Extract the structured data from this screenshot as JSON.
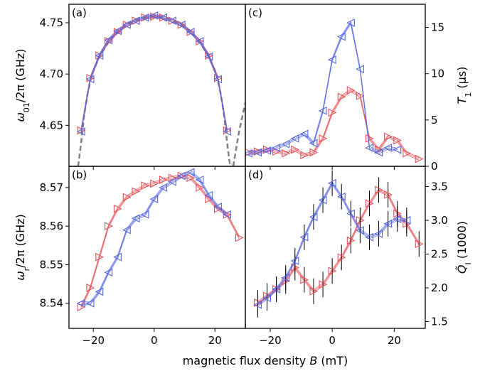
{
  "chart_data": [
    {
      "panel": "a",
      "type": "scatter",
      "label": "(a)",
      "ylabel_parts": {
        "pre": "ω",
        "sub": "01",
        "post": "/2π (GHz)"
      },
      "xlim": [
        -28,
        30
      ],
      "ylim": [
        4.61,
        4.768
      ],
      "yticks": [
        4.65,
        4.7,
        4.75
      ],
      "ytick_labels": [
        "4.65",
        "4.70",
        "4.75"
      ],
      "series": [
        {
          "color": "#e8525a",
          "marker": "triangle-right",
          "x": [
            -24,
            -21,
            -18,
            -15,
            -12,
            -9,
            -6,
            -3,
            0,
            3,
            6,
            9,
            12,
            15,
            18,
            21,
            24
          ],
          "y": [
            4.645,
            4.696,
            4.718,
            4.732,
            4.741,
            4.748,
            4.752,
            4.755,
            4.756,
            4.755,
            4.752,
            4.748,
            4.741,
            4.732,
            4.718,
            4.696,
            4.645
          ]
        },
        {
          "color": "#5566e0",
          "marker": "triangle-left",
          "x": [
            -24,
            -21,
            -18,
            -15,
            -12,
            -9,
            -6,
            -3,
            0,
            3,
            6,
            9,
            12,
            15,
            18,
            21,
            24
          ],
          "y": [
            4.644,
            4.695,
            4.718,
            4.733,
            4.742,
            4.748,
            4.752,
            4.755,
            4.757,
            4.755,
            4.752,
            4.748,
            4.741,
            4.732,
            4.717,
            4.695,
            4.644
          ]
        }
      ],
      "fit_curve": {
        "color": "#808080",
        "style": "dashed",
        "x": [
          -25,
          -24,
          -23,
          -22,
          -21,
          -20,
          -18,
          -15,
          -12,
          -9,
          -6,
          -3,
          0,
          3,
          6,
          9,
          12,
          15,
          18,
          20,
          21,
          22,
          23,
          24,
          25,
          26,
          28,
          30
        ],
        "y": [
          4.61,
          4.633,
          4.66,
          4.679,
          4.693,
          4.703,
          4.717,
          4.731,
          4.741,
          4.748,
          4.752,
          4.755,
          4.756,
          4.755,
          4.752,
          4.748,
          4.741,
          4.731,
          4.717,
          4.703,
          4.693,
          4.679,
          4.66,
          4.633,
          4.61,
          4.61,
          4.645,
          4.672
        ]
      }
    },
    {
      "panel": "b",
      "type": "scatter",
      "label": "(b)",
      "ylabel_parts": {
        "pre": "ω",
        "sub": "r",
        "post": "/2π (GHz)"
      },
      "xlim": [
        -28,
        30
      ],
      "ylim": [
        8.5335,
        8.5755
      ],
      "yticks": [
        8.54,
        8.55,
        8.56,
        8.57
      ],
      "ytick_labels": [
        "8.54",
        "8.55",
        "8.56",
        "8.57"
      ],
      "xticks": [
        -20,
        0,
        20
      ],
      "xtick_labels": [
        "−20",
        "0",
        "20"
      ],
      "series": [
        {
          "color": "#e8525a",
          "marker": "triangle-right",
          "x": [
            -24,
            -21,
            -18,
            -15,
            -12,
            -9,
            -6,
            -3,
            0,
            3,
            6,
            9,
            12,
            15,
            18,
            21,
            24,
            28
          ],
          "y": [
            8.539,
            8.544,
            8.552,
            8.56,
            8.5645,
            8.5675,
            8.569,
            8.5705,
            8.571,
            8.572,
            8.5725,
            8.573,
            8.5725,
            8.57,
            8.567,
            8.5645,
            8.563,
            8.557
          ]
        },
        {
          "color": "#5566e0",
          "marker": "triangle-left",
          "x": [
            -24,
            -21,
            -18,
            -15,
            -12,
            -9,
            -6,
            -3,
            0,
            3,
            6,
            9,
            12,
            15,
            18,
            21,
            24
          ],
          "y": [
            8.54,
            8.54,
            8.543,
            8.548,
            8.552,
            8.559,
            8.562,
            8.563,
            8.567,
            8.57,
            8.5715,
            8.573,
            8.574,
            8.572,
            8.568,
            8.565,
            8.563
          ]
        }
      ]
    },
    {
      "panel": "c",
      "type": "scatter",
      "label": "(c)",
      "ylabel_parts": {
        "pre": "T",
        "sub": "1",
        "post": " (μs)"
      },
      "xlim": [
        -28,
        30
      ],
      "ylim": [
        0,
        17.5
      ],
      "yticks": [
        0,
        5,
        10,
        15
      ],
      "ytick_labels": [
        "0",
        "5",
        "10",
        "15"
      ],
      "series": [
        {
          "color": "#e8525a",
          "marker": "triangle-right",
          "x": [
            -27,
            -24,
            -21,
            -18,
            -15,
            -12,
            -9,
            -6,
            -3,
            0,
            3,
            6,
            9,
            12,
            15,
            18,
            21,
            24,
            28
          ],
          "y": [
            1.5,
            1.6,
            1.8,
            1.6,
            1.4,
            1.8,
            1.2,
            1.5,
            3.0,
            5.8,
            7.5,
            8.2,
            7.6,
            3.0,
            1.8,
            3.2,
            2.8,
            1.4,
            0.8
          ]
        },
        {
          "color": "#5566e0",
          "marker": "triangle-left",
          "x": [
            -27,
            -24,
            -21,
            -18,
            -15,
            -12,
            -9,
            -6,
            -3,
            0,
            3,
            6,
            9,
            12,
            15,
            18,
            21
          ],
          "y": [
            1.4,
            1.5,
            1.7,
            2.0,
            2.4,
            3.0,
            3.5,
            2.5,
            6.0,
            11.5,
            14.0,
            15.5,
            10.5,
            2.0,
            1.5,
            2.0,
            1.8
          ]
        }
      ]
    },
    {
      "panel": "d",
      "type": "scatter",
      "label": "(d)",
      "ylabel_parts": {
        "pre": "Q̃",
        "sub": "I",
        "post": " (1000)"
      },
      "xlim": [
        -28,
        30
      ],
      "ylim": [
        1.4,
        3.8
      ],
      "yticks": [
        1.5,
        2.0,
        2.5,
        3.0,
        3.5
      ],
      "ytick_labels": [
        "1.5",
        "2.0",
        "2.5",
        "3.0",
        "3.5"
      ],
      "xticks": [
        -20,
        0,
        20
      ],
      "xtick_labels": [
        "−20",
        "0",
        "20"
      ],
      "series": [
        {
          "color": "#e8525a",
          "marker": "triangle-right",
          "x": [
            -24,
            -21,
            -18,
            -15,
            -12,
            -9,
            -6,
            -3,
            0,
            3,
            6,
            9,
            12,
            15,
            18,
            21,
            24,
            28
          ],
          "y": [
            1.78,
            1.88,
            1.98,
            2.1,
            2.3,
            2.12,
            1.95,
            2.05,
            2.25,
            2.45,
            2.7,
            3.0,
            3.25,
            3.45,
            3.38,
            3.1,
            2.95,
            2.65
          ]
        },
        {
          "color": "#5566e0",
          "marker": "triangle-left",
          "x": [
            -24,
            -21,
            -18,
            -15,
            -12,
            -9,
            -6,
            -3,
            0,
            3,
            6,
            9,
            12,
            15,
            18,
            21,
            24
          ],
          "y": [
            1.75,
            1.85,
            1.98,
            2.15,
            2.4,
            2.75,
            3.05,
            3.3,
            3.55,
            3.35,
            3.1,
            2.85,
            2.75,
            2.8,
            2.95,
            3.02,
            3.0
          ]
        }
      ]
    }
  ],
  "xlabel": {
    "pre": "magnetic flux density ",
    "italic": "B",
    "post": " (mT)"
  }
}
